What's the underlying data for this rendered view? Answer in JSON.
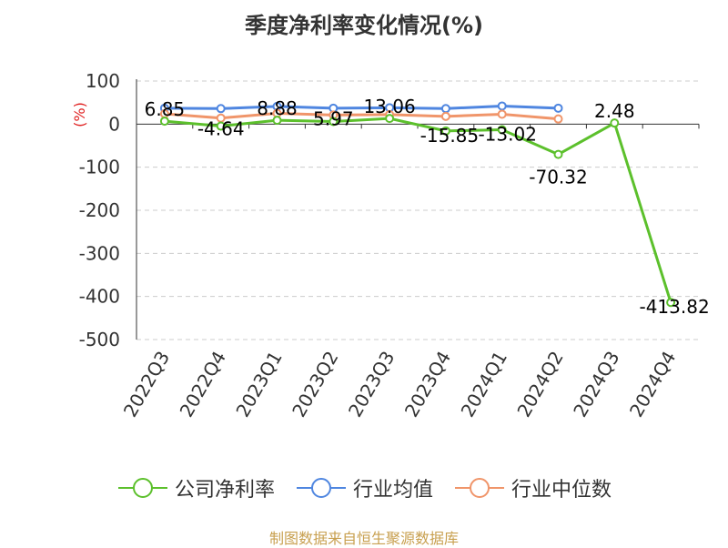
{
  "chart_data": {
    "type": "line",
    "title": "季度净利率变化情况(%)",
    "ylabel": "(%)",
    "xlabel": "",
    "ylim": [
      -500,
      100
    ],
    "yticks": [
      100,
      0,
      -100,
      -200,
      -300,
      -400,
      -500
    ],
    "categories": [
      "2022Q3",
      "2022Q4",
      "2023Q1",
      "2023Q2",
      "2023Q3",
      "2023Q4",
      "2024Q1",
      "2024Q2",
      "2024Q3",
      "2024Q4"
    ],
    "grid": true,
    "legend_position": "bottom",
    "series": [
      {
        "name": "公司净利率",
        "color": "#5cc02c",
        "values": [
          6.85,
          -4.64,
          8.88,
          5.97,
          13.06,
          -15.85,
          -13.02,
          -70.32,
          2.48,
          -413.82
        ],
        "labels": [
          "6.85",
          "-4.64",
          "8.88",
          "5.97",
          "13.06",
          "-15.85",
          "-13.02",
          "-70.32",
          "2.48",
          "-413.82"
        ]
      },
      {
        "name": "行业均值",
        "color": "#4f86e0",
        "values": [
          37,
          36,
          41,
          37,
          38,
          36,
          42,
          37,
          null,
          null
        ]
      },
      {
        "name": "行业中位数",
        "color": "#f0956a",
        "values": [
          24,
          14,
          25,
          21,
          22,
          18,
          23,
          12,
          null,
          null
        ]
      }
    ]
  },
  "source": "制图数据来自恒生聚源数据库"
}
